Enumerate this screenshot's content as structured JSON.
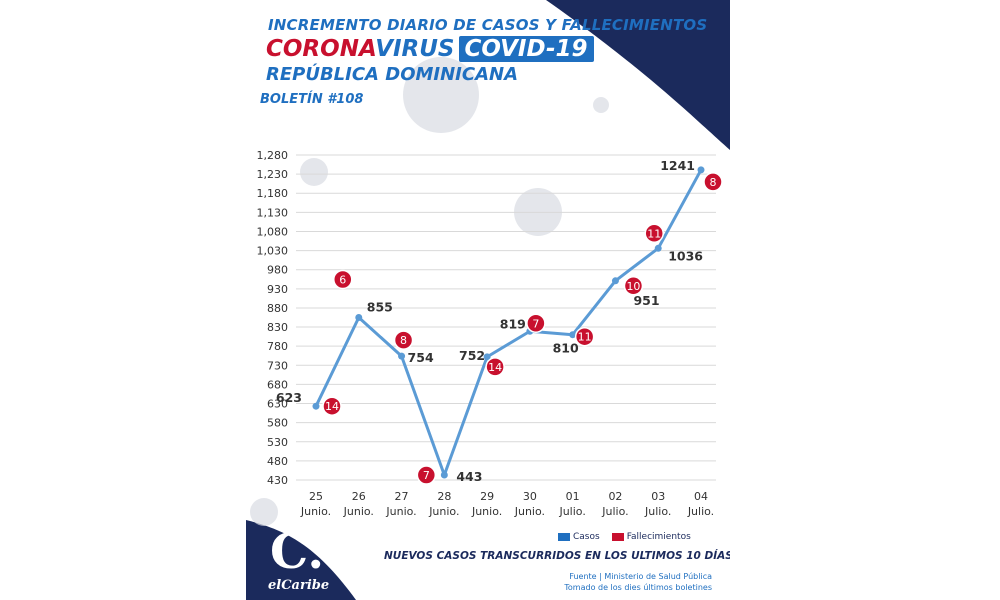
{
  "header": {
    "line1": "INCREMENTO DIARIO DE CASOS Y FALLECIMIENTOS",
    "corona": "CORONA",
    "virus": "VIRUS",
    "covid": "COVID-19",
    "country": "REPÚBLICA DOMINICANA",
    "bulletin": "BOLETÍN #108"
  },
  "colors": {
    "cases_line": "#5b9bd5",
    "deaths_badge": "#c8102e",
    "navy": "#1b2a5c",
    "blue_text": "#1f6fc0"
  },
  "chart_data": {
    "type": "line",
    "categories": [
      [
        "25",
        "Junio."
      ],
      [
        "26",
        "Junio."
      ],
      [
        "27",
        "Junio."
      ],
      [
        "28",
        "Junio."
      ],
      [
        "29",
        "Junio."
      ],
      [
        "30",
        "Junio."
      ],
      [
        "01",
        "Julio."
      ],
      [
        "02",
        "Julio."
      ],
      [
        "03",
        "Julio."
      ],
      [
        "04",
        "Julio."
      ]
    ],
    "series": [
      {
        "name": "Casos",
        "values": [
          623,
          855,
          754,
          443,
          752,
          819,
          810,
          951,
          1036,
          1241
        ]
      },
      {
        "name": "Fallecimientos",
        "values": [
          14,
          6,
          8,
          7,
          14,
          7,
          11,
          10,
          11,
          8
        ]
      }
    ],
    "ylim": [
      430,
      1280
    ],
    "yticks": [
      430,
      480,
      530,
      580,
      630,
      680,
      730,
      780,
      830,
      880,
      930,
      980,
      1030,
      1080,
      1130,
      1180,
      1230,
      1280
    ],
    "ytick_labels": [
      "430",
      "480",
      "530",
      "580",
      "630",
      "680",
      "730",
      "780",
      "830",
      "880",
      "930",
      "980",
      "1,030",
      "1,080",
      "1,130",
      "1,180",
      "1,230",
      "1,280"
    ],
    "grid": true,
    "legend_position": "bottom-right"
  },
  "legend": {
    "cases": "Casos",
    "deaths": "Fallecimientos"
  },
  "footer": {
    "subtitle": "NUEVOS CASOS TRANSCURRIDOS EN LOS ULTIMOS 10 DÍAS",
    "source_line1": "Fuente | Ministerio de Salud Pública",
    "source_line2": "Tomado de  los dies últimos boletines",
    "logo_letter": "C.",
    "logo_name": "elCaribe"
  }
}
